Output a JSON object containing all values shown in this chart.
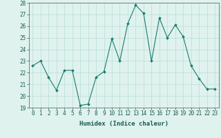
{
  "x": [
    0,
    1,
    2,
    3,
    4,
    5,
    6,
    7,
    8,
    9,
    10,
    11,
    12,
    13,
    14,
    15,
    16,
    17,
    18,
    19,
    20,
    21,
    22,
    23
  ],
  "y": [
    22.6,
    23.0,
    21.6,
    20.5,
    22.2,
    22.2,
    19.2,
    19.3,
    21.6,
    22.1,
    24.9,
    23.0,
    26.2,
    27.8,
    27.1,
    23.0,
    26.7,
    25.0,
    26.1,
    25.1,
    22.6,
    21.5,
    20.6,
    20.6
  ],
  "line_color": "#1a7a6e",
  "marker": "D",
  "markersize": 2.0,
  "linewidth": 0.8,
  "bg_color": "#dff2ee",
  "grid_color": "#b8ddd8",
  "xlabel": "Humidex (Indice chaleur)",
  "ylabel": "",
  "title": "",
  "xlim": [
    -0.5,
    23.5
  ],
  "ylim": [
    19,
    28
  ],
  "yticks": [
    19,
    20,
    21,
    22,
    23,
    24,
    25,
    26,
    27,
    28
  ],
  "xticks": [
    0,
    1,
    2,
    3,
    4,
    5,
    6,
    7,
    8,
    9,
    10,
    11,
    12,
    13,
    14,
    15,
    16,
    17,
    18,
    19,
    20,
    21,
    22,
    23
  ],
  "tick_fontsize": 5.5,
  "xlabel_fontsize": 6.5
}
